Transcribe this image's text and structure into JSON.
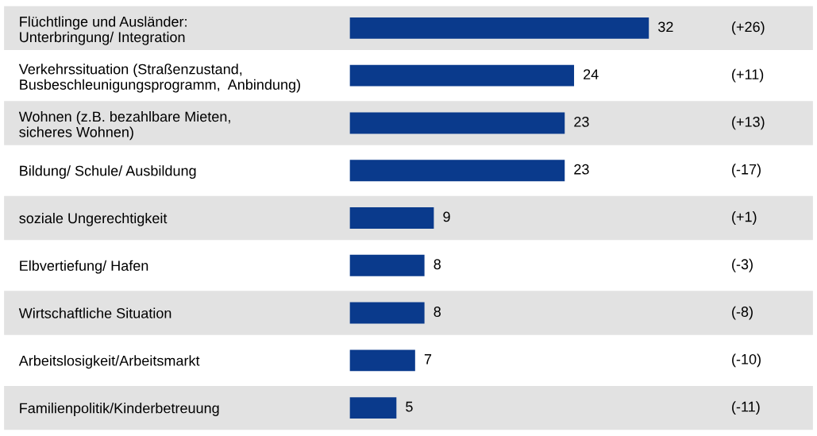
{
  "chart_data": {
    "type": "bar",
    "orientation": "horizontal",
    "categories": [
      "Flüchtlinge und Ausländer:\nUnterbringung/ Integration",
      "Verkehrssituation (Straßenzustand,\nBusbeschleunigungsprogramm,  Anbindung)",
      "Wohnen (z.B. bezahlbare Mieten,\nsicheres Wohnen)",
      "Bildung/ Schule/ Ausbildung",
      "soziale Ungerechtigkeit",
      "Elbvertiefung/ Hafen",
      "Wirtschaftliche Situation",
      "Arbeitslosigkeit/Arbeitsmarkt",
      "Familienpolitik/Kinderbetreuung"
    ],
    "values": [
      32,
      24,
      23,
      23,
      9,
      8,
      8,
      7,
      5
    ],
    "color": "#0a3a8c",
    "data_labels": true,
    "annotations": [
      "(+26)",
      "(+11)",
      "(+13)",
      "(-17)",
      "(+1)",
      "(-3)",
      "(-8)",
      "(-10)",
      "(-11)"
    ]
  }
}
